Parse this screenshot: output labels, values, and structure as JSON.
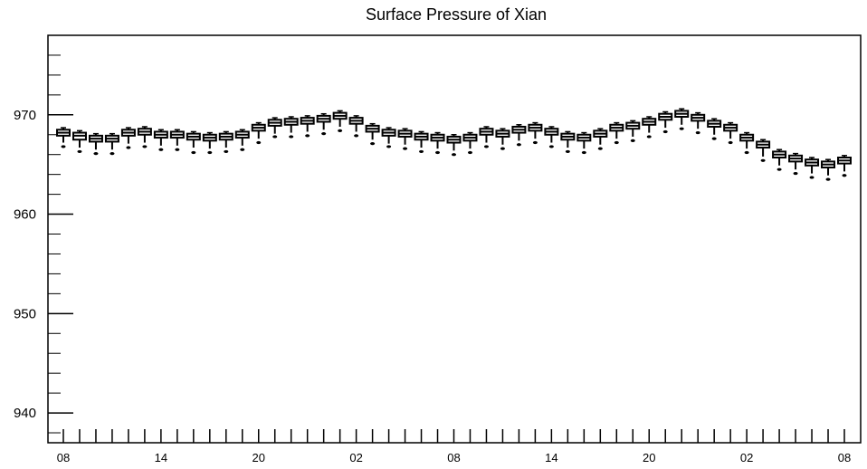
{
  "chart_data": {
    "type": "boxplot",
    "title": "Surface Pressure of Xian",
    "xlabel": "",
    "ylabel": "",
    "ylim": [
      937,
      978
    ],
    "yticks": [
      940,
      950,
      960,
      970
    ],
    "ytick_labels": [
      "940",
      "950",
      "960",
      "970"
    ],
    "xtick_labels": [
      {
        "index": 0,
        "label": "08"
      },
      {
        "index": 6,
        "label": "14"
      },
      {
        "index": 12,
        "label": "20"
      },
      {
        "index": 18,
        "label": "02"
      },
      {
        "index": 24,
        "label": "08"
      },
      {
        "index": 30,
        "label": "14"
      },
      {
        "index": 36,
        "label": "20"
      },
      {
        "index": 42,
        "label": "02"
      },
      {
        "index": 48,
        "label": "08"
      }
    ],
    "grid": false,
    "series": [
      {
        "medians": [
          968.2,
          967.9,
          967.6,
          967.6,
          968.2,
          968.3,
          968.0,
          968.0,
          967.8,
          967.7,
          967.8,
          968.0,
          968.7,
          969.2,
          969.3,
          969.4,
          969.6,
          969.9,
          969.4,
          968.6,
          968.2,
          968.1,
          967.8,
          967.7,
          967.5,
          967.7,
          968.3,
          968.1,
          968.5,
          968.7,
          968.3,
          967.8,
          967.7,
          968.1,
          968.7,
          968.9,
          969.3,
          969.8,
          970.1,
          969.7,
          969.1,
          968.7,
          967.7,
          967.0,
          966.0,
          965.6,
          965.2,
          965.0,
          965.4
        ],
        "q1": [
          967.9,
          967.5,
          967.3,
          967.3,
          967.9,
          968.0,
          967.7,
          967.7,
          967.5,
          967.4,
          967.5,
          967.7,
          968.4,
          968.9,
          969.0,
          969.1,
          969.3,
          969.6,
          969.1,
          968.3,
          967.9,
          967.8,
          967.5,
          967.4,
          967.2,
          967.4,
          968.0,
          967.8,
          968.2,
          968.4,
          968.0,
          967.5,
          967.4,
          967.8,
          968.4,
          968.6,
          969.0,
          969.5,
          969.8,
          969.4,
          968.8,
          968.4,
          967.4,
          966.7,
          965.7,
          965.3,
          964.9,
          964.7,
          965.1
        ],
        "q3": [
          968.5,
          968.2,
          967.9,
          967.9,
          968.5,
          968.6,
          968.3,
          968.3,
          968.1,
          968.0,
          968.1,
          968.3,
          969.0,
          969.5,
          969.6,
          969.7,
          969.9,
          970.2,
          969.7,
          968.9,
          968.5,
          968.4,
          968.1,
          968.0,
          967.8,
          968.0,
          968.6,
          968.4,
          968.8,
          969.0,
          968.6,
          968.1,
          968.0,
          968.4,
          969.0,
          969.2,
          969.6,
          970.1,
          970.4,
          970.0,
          969.4,
          969.0,
          968.0,
          967.3,
          966.3,
          965.9,
          965.5,
          965.3,
          965.7
        ],
        "whisker_low": [
          967.2,
          966.7,
          966.5,
          966.5,
          967.1,
          967.2,
          966.9,
          966.9,
          966.7,
          966.6,
          966.7,
          966.9,
          967.6,
          968.1,
          968.2,
          968.3,
          968.5,
          968.8,
          968.3,
          967.5,
          967.1,
          967.0,
          966.7,
          966.6,
          966.4,
          966.6,
          967.2,
          967.0,
          967.4,
          967.6,
          967.2,
          966.7,
          966.6,
          967.0,
          967.6,
          967.8,
          968.2,
          968.7,
          969.0,
          968.6,
          968.0,
          967.6,
          966.6,
          965.8,
          964.9,
          964.5,
          964.1,
          963.9,
          964.3
        ],
        "whisker_high": [
          968.7,
          968.4,
          968.1,
          968.1,
          968.7,
          968.8,
          968.5,
          968.5,
          968.3,
          968.2,
          968.3,
          968.5,
          969.2,
          969.7,
          969.8,
          969.9,
          970.1,
          970.4,
          969.9,
          969.1,
          968.7,
          968.6,
          968.3,
          968.2,
          968.0,
          968.2,
          968.8,
          968.6,
          969.0,
          969.2,
          968.8,
          968.3,
          968.2,
          968.6,
          969.2,
          969.4,
          969.8,
          970.3,
          970.6,
          970.2,
          969.6,
          969.2,
          968.2,
          967.5,
          966.5,
          966.1,
          965.7,
          965.5,
          965.9
        ],
        "outliers": [
          966.8,
          966.3,
          966.1,
          966.1,
          966.7,
          966.8,
          966.5,
          966.5,
          966.2,
          966.2,
          966.3,
          966.5,
          967.2,
          967.8,
          967.8,
          967.9,
          968.1,
          968.4,
          967.9,
          967.1,
          966.8,
          966.6,
          966.3,
          966.2,
          966.0,
          966.2,
          966.8,
          966.6,
          967.0,
          967.2,
          966.8,
          966.3,
          966.2,
          966.6,
          967.2,
          967.4,
          967.8,
          968.3,
          968.6,
          968.2,
          967.6,
          967.2,
          966.2,
          965.4,
          964.5,
          964.1,
          963.7,
          963.5,
          963.9
        ]
      }
    ]
  }
}
